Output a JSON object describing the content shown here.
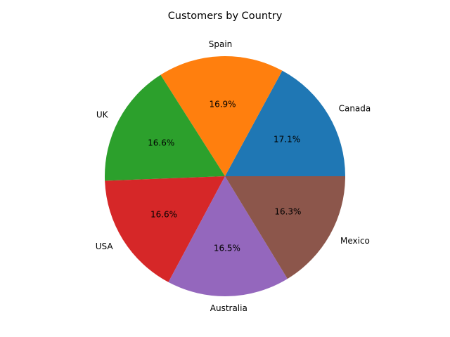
{
  "chart_data": {
    "type": "pie",
    "title": "Customers by Country",
    "categories": [
      "Canada",
      "Spain",
      "UK",
      "USA",
      "Australia",
      "Mexico"
    ],
    "values": [
      17.1,
      16.9,
      16.6,
      16.6,
      16.5,
      16.3
    ],
    "percent_labels": [
      "17.1%",
      "16.9%",
      "16.6%",
      "16.6%",
      "16.5%",
      "16.3%"
    ],
    "colors": [
      "#1f77b4",
      "#ff7f0e",
      "#2ca02c",
      "#d62728",
      "#9467bd",
      "#8c564b"
    ],
    "start_angle_deg": 0,
    "direction": "counterclockwise"
  }
}
